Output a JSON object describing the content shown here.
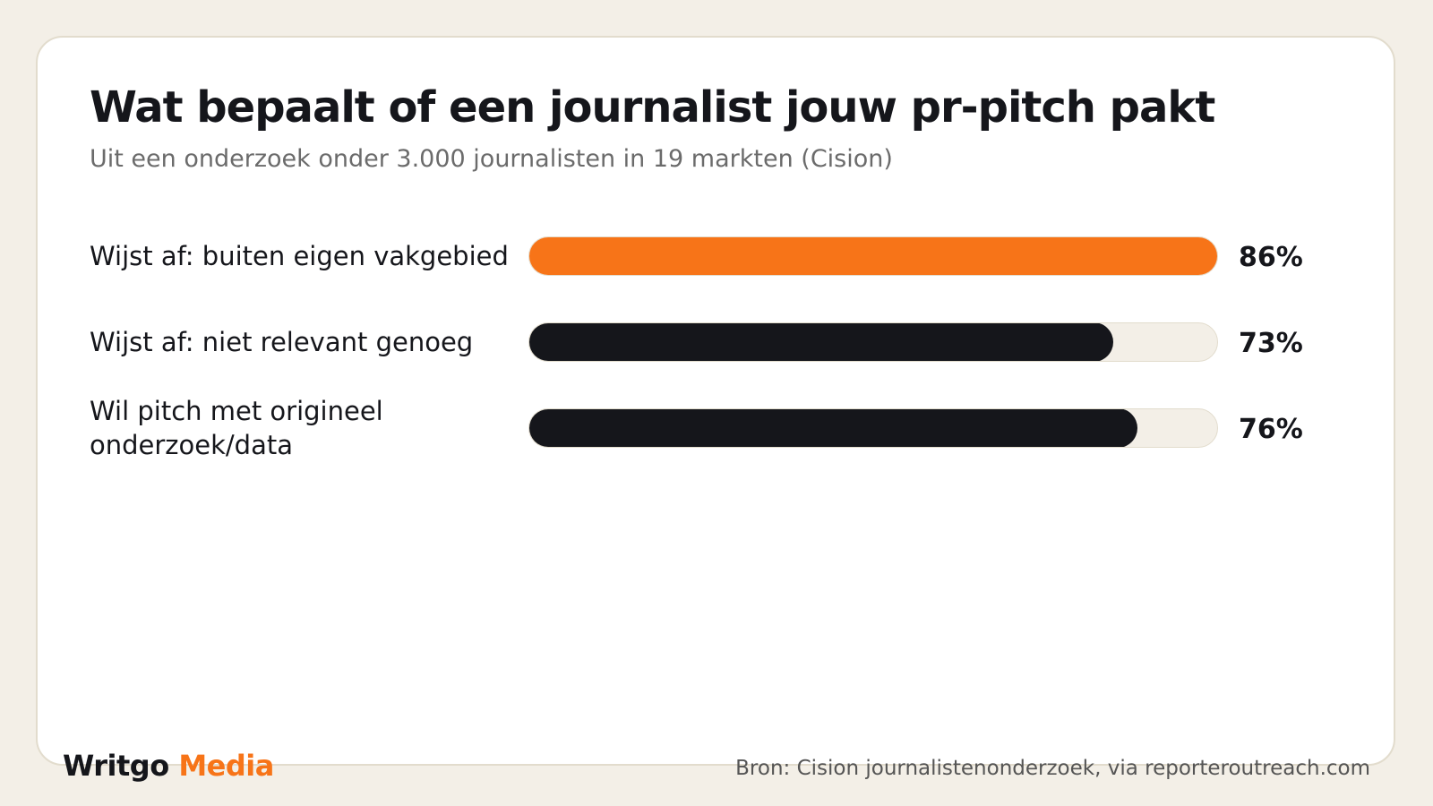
{
  "chart_data": {
    "type": "bar",
    "orientation": "horizontal",
    "title": "Wat bepaalt of een journalist jouw pr-pitch pakt",
    "subtitle": "Uit een onderzoek onder 3.000 journalisten in 19 markten (Cision)",
    "categories": [
      "Wijst af: buiten eigen vakgebied",
      "Wijst af: niet relevant genoeg",
      "Wil pitch met origineel onderzoek/data"
    ],
    "values": [
      86,
      73,
      76
    ],
    "value_labels": [
      "86%",
      "73%",
      "76%"
    ],
    "xlim": [
      0,
      86
    ],
    "bar_colors": [
      "#f77418",
      "#15161b",
      "#15161b"
    ],
    "track_color": "#f3efe7",
    "grid": false
  },
  "brand": {
    "part1": "Writgo",
    "part2": "Media",
    "color_primary": "#15161b",
    "color_accent": "#f77418"
  },
  "source": "Bron: Cision journalistenonderzoek, via reporteroutreach.com"
}
